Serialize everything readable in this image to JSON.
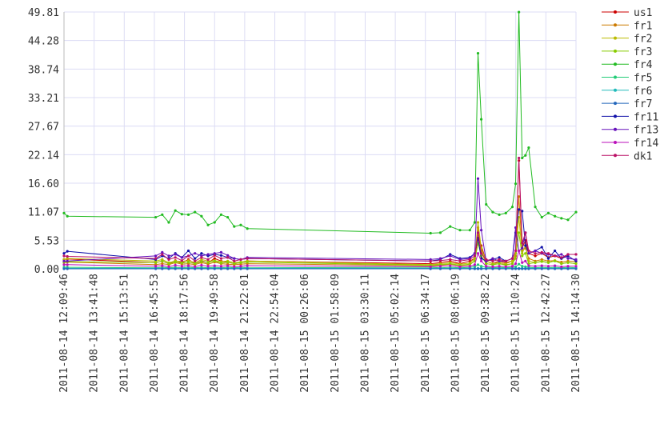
{
  "chart_data": {
    "type": "line",
    "x": [
      "2011-08-14 12:09:46",
      "2011-08-14 12:20:00",
      "2011-08-14 16:50:00",
      "2011-08-14 17:10:00",
      "2011-08-14 17:30:00",
      "2011-08-14 17:50:00",
      "2011-08-14 18:10:00",
      "2011-08-14 18:30:00",
      "2011-08-14 18:50:00",
      "2011-08-14 19:10:00",
      "2011-08-14 19:30:00",
      "2011-08-14 19:50:00",
      "2011-08-14 20:10:00",
      "2011-08-14 20:30:00",
      "2011-08-14 20:50:00",
      "2011-08-14 21:10:00",
      "2011-08-14 21:30:00",
      "2011-08-15 06:50:00",
      "2011-08-15 07:20:00",
      "2011-08-15 07:50:00",
      "2011-08-15 08:20:00",
      "2011-08-15 08:50:00",
      "2011-08-15 09:05:00",
      "2011-08-15 09:15:00",
      "2011-08-15 09:25:00",
      "2011-08-15 09:40:00",
      "2011-08-15 10:00:00",
      "2011-08-15 10:20:00",
      "2011-08-15 10:40:00",
      "2011-08-15 11:00:00",
      "2011-08-15 11:10:00",
      "2011-08-15 11:20:00",
      "2011-08-15 11:30:00",
      "2011-08-15 11:40:00",
      "2011-08-15 11:50:00",
      "2011-08-15 12:10:00",
      "2011-08-15 12:30:00",
      "2011-08-15 12:50:00",
      "2011-08-15 13:10:00",
      "2011-08-15 13:30:00",
      "2011-08-15 13:50:00",
      "2011-08-15 14:14:30"
    ],
    "xlim": [
      "2011-08-14 12:09:46",
      "2011-08-15 14:14:30"
    ],
    "xticks": [
      "2011-08-14 12:09:46",
      "2011-08-14 13:41:48",
      "2011-08-14 15:13:51",
      "2011-08-14 16:45:53",
      "2011-08-14 18:17:56",
      "2011-08-14 19:49:58",
      "2011-08-14 21:22:01",
      "2011-08-14 22:54:04",
      "2011-08-15 00:26:06",
      "2011-08-15 01:58:09",
      "2011-08-15 03:30:11",
      "2011-08-15 05:02:14",
      "2011-08-15 06:34:17",
      "2011-08-15 08:06:19",
      "2011-08-15 09:38:22",
      "2011-08-15 11:10:24",
      "2011-08-15 12:42:27",
      "2011-08-15 14:14:30"
    ],
    "ylim": [
      0,
      49.81
    ],
    "yticks": [
      {
        "value": 0,
        "label": "0.00"
      },
      5.53,
      11.07,
      {
        "value": 16.6,
        "label": "16.60"
      },
      22.14,
      27.67,
      33.21,
      38.74,
      44.28,
      49.81
    ],
    "grid": true,
    "legend": "right",
    "series": [
      {
        "name": "us1",
        "color": "#cc0000",
        "values": [
          1.8,
          1.9,
          1.2,
          1.5,
          1.0,
          1.6,
          1.2,
          1.8,
          1.0,
          1.5,
          1.2,
          2.0,
          1.5,
          1.3,
          1.0,
          1.2,
          1.5,
          1.0,
          1.2,
          1.5,
          1.0,
          1.5,
          2.0,
          6.0,
          4.5,
          1.5,
          1.0,
          1.5,
          1.2,
          1.5,
          3.0,
          21.0,
          4.0,
          5.5,
          3.0,
          2.5,
          3.0,
          2.2,
          2.5,
          2.0,
          2.8,
          2.8
        ]
      },
      {
        "name": "fr1",
        "color": "#cc7a00",
        "values": [
          1.2,
          1.3,
          0.8,
          1.0,
          0.8,
          1.2,
          0.9,
          1.0,
          0.8,
          1.2,
          0.9,
          1.3,
          1.0,
          0.9,
          0.8,
          0.9,
          1.0,
          0.6,
          0.7,
          0.9,
          0.6,
          0.8,
          1.5,
          8.0,
          3.5,
          1.0,
          0.8,
          1.0,
          0.8,
          1.0,
          2.5,
          14.0,
          3.5,
          4.0,
          2.0,
          1.5,
          1.8,
          1.5,
          1.6,
          1.3,
          1.5,
          1.4
        ]
      },
      {
        "name": "fr2",
        "color": "#bbbb00",
        "values": [
          1.8,
          2.0,
          1.5,
          1.8,
          1.2,
          1.5,
          1.4,
          1.6,
          1.2,
          1.8,
          1.5,
          1.6,
          1.4,
          1.5,
          1.2,
          1.3,
          1.5,
          0.8,
          1.0,
          1.2,
          0.9,
          1.1,
          2.0,
          9.0,
          4.0,
          1.5,
          1.0,
          1.2,
          1.0,
          1.5,
          3.0,
          10.0,
          3.0,
          4.5,
          1.5,
          1.2,
          1.5,
          1.2,
          1.6,
          1.0,
          1.2,
          1.0
        ]
      },
      {
        "name": "fr3",
        "color": "#88cc00",
        "values": [
          1.3,
          1.4,
          1.2,
          1.5,
          1.0,
          1.3,
          1.1,
          1.3,
          1.0,
          1.4,
          1.2,
          1.5,
          1.1,
          1.3,
          1.0,
          1.2,
          1.3,
          0.7,
          0.8,
          1.0,
          0.7,
          0.9,
          1.5,
          5.0,
          2.5,
          1.0,
          0.8,
          1.0,
          0.7,
          1.0,
          2.0,
          7.0,
          2.5,
          3.0,
          1.0,
          1.2,
          1.4,
          1.2,
          1.5,
          1.0,
          1.2,
          1.0
        ]
      },
      {
        "name": "fr4",
        "color": "#22bb22",
        "values": [
          10.8,
          10.2,
          10.0,
          10.5,
          9.0,
          11.3,
          10.6,
          10.5,
          11.0,
          10.2,
          8.5,
          9.0,
          10.5,
          10.0,
          8.2,
          8.5,
          7.8,
          6.9,
          7.0,
          8.2,
          7.5,
          7.5,
          9.0,
          41.8,
          29.0,
          12.5,
          11.0,
          10.5,
          10.8,
          12.0,
          16.5,
          49.8,
          21.5,
          22.0,
          23.5,
          12.0,
          10.0,
          10.8,
          10.2,
          9.8,
          9.5,
          11.0
        ]
      },
      {
        "name": "fr5",
        "color": "#22cc77",
        "values": [
          0.3,
          0.3,
          0.2,
          0.3,
          0.2,
          0.3,
          0.2,
          0.3,
          0.2,
          0.3,
          0.2,
          0.3,
          0.2,
          0.3,
          0.2,
          0.3,
          0.2,
          0.3,
          0.2,
          0.3,
          0.2,
          0.3,
          0.4,
          0.8,
          0.5,
          0.3,
          0.2,
          0.3,
          0.2,
          0.3,
          0.4,
          0.9,
          0.5,
          0.4,
          0.3,
          0.2,
          0.3,
          0.2,
          0.3,
          0.2,
          0.3,
          0.2
        ]
      },
      {
        "name": "fr6",
        "color": "#22bbbb",
        "values": [
          0.1,
          0.1,
          0.1,
          0.1,
          0.1,
          0.1,
          0.1,
          0.1,
          0.1,
          0.1,
          0.1,
          0.1,
          0.1,
          0.1,
          0.1,
          0.1,
          0.1,
          0.1,
          0.1,
          0.1,
          0.1,
          0.1,
          0.1,
          0.1,
          0.1,
          0.1,
          0.1,
          0.1,
          0.1,
          0.1,
          0.1,
          0.1,
          0.1,
          0.1,
          0.1,
          0.1,
          0.1,
          0.1,
          0.1,
          0.1,
          0.1,
          0.1
        ]
      },
      {
        "name": "fr7",
        "color": "#2266bb",
        "values": [
          0,
          0,
          0,
          0,
          0,
          0,
          0,
          0,
          0,
          0,
          0,
          0,
          0,
          0,
          0,
          0,
          0,
          0,
          0,
          0,
          0,
          0,
          0,
          0,
          0,
          0,
          0,
          0,
          0,
          0,
          0,
          0,
          0,
          0,
          0,
          0,
          0,
          0,
          0,
          0,
          0,
          0
        ]
      },
      {
        "name": "fr11",
        "color": "#1111aa",
        "values": [
          3.0,
          3.4,
          1.8,
          2.5,
          2.0,
          3.0,
          2.2,
          3.5,
          2.0,
          3.0,
          2.5,
          2.8,
          2.6,
          2.2,
          2.0,
          1.8,
          2.0,
          1.5,
          1.8,
          2.8,
          2.0,
          2.2,
          3.0,
          6.0,
          2.0,
          1.5,
          1.8,
          2.2,
          1.5,
          2.0,
          7.0,
          11.5,
          11.2,
          4.5,
          3.0,
          3.5,
          4.2,
          2.0,
          3.5,
          2.0,
          2.5,
          1.5
        ]
      },
      {
        "name": "fr13",
        "color": "#6611bb",
        "values": [
          1.5,
          1.5,
          2.5,
          3.2,
          2.5,
          2.8,
          2.2,
          2.5,
          3.0,
          2.5,
          2.8,
          3.0,
          3.2,
          2.6,
          2.0,
          1.8,
          2.2,
          1.8,
          2.0,
          2.5,
          1.8,
          2.0,
          3.0,
          17.5,
          7.5,
          1.5,
          2.0,
          1.5,
          1.5,
          2.0,
          8.0,
          3.5,
          4.0,
          7.0,
          3.0,
          3.5,
          3.0,
          2.8,
          2.5,
          2.8,
          2.0,
          1.8
        ]
      },
      {
        "name": "fr14",
        "color": "#bb11bb",
        "values": [
          0.8,
          0.8,
          0.5,
          0.6,
          0.4,
          0.7,
          0.5,
          0.6,
          0.4,
          0.7,
          0.5,
          0.6,
          0.5,
          0.6,
          0.4,
          0.5,
          0.6,
          0.4,
          0.5,
          0.6,
          0.4,
          0.5,
          0.8,
          3.0,
          1.5,
          0.5,
          0.4,
          0.5,
          0.4,
          0.5,
          1.0,
          3.5,
          1.2,
          1.5,
          0.6,
          0.5,
          0.6,
          0.5,
          0.6,
          0.4,
          0.5,
          0.5
        ]
      },
      {
        "name": "dk1",
        "color": "#bb1166",
        "values": [
          2.5,
          2.4,
          2.0,
          2.8,
          1.8,
          2.2,
          1.6,
          2.5,
          1.5,
          2.2,
          1.8,
          2.6,
          2.0,
          2.2,
          1.5,
          1.8,
          2.0,
          1.5,
          1.6,
          1.8,
          1.5,
          1.8,
          2.5,
          7.0,
          3.0,
          1.8,
          1.5,
          1.8,
          1.5,
          2.0,
          3.5,
          21.5,
          5.0,
          7.0,
          3.5,
          3.0,
          3.2,
          3.0,
          2.5,
          2.2,
          2.8,
          2.8
        ]
      }
    ]
  }
}
